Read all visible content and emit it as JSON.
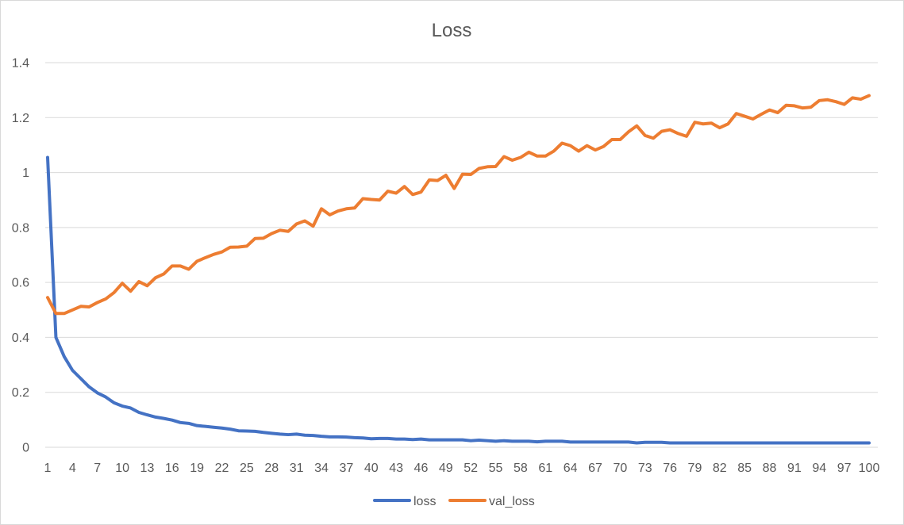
{
  "chart_data": {
    "type": "line",
    "title": "Loss",
    "xlabel": "",
    "ylabel": "",
    "ylim": [
      0,
      1.4
    ],
    "yticks": [
      "0",
      "0.2",
      "0.4",
      "0.6",
      "0.8",
      "1",
      "1.2",
      "1.4"
    ],
    "x": [
      1,
      2,
      3,
      4,
      5,
      6,
      7,
      8,
      9,
      10,
      11,
      12,
      13,
      14,
      15,
      16,
      17,
      18,
      19,
      20,
      21,
      22,
      23,
      24,
      25,
      26,
      27,
      28,
      29,
      30,
      31,
      32,
      33,
      34,
      35,
      36,
      37,
      38,
      39,
      40,
      41,
      42,
      43,
      44,
      45,
      46,
      47,
      48,
      49,
      50,
      51,
      52,
      53,
      54,
      55,
      56,
      57,
      58,
      59,
      60,
      61,
      62,
      63,
      64,
      65,
      66,
      67,
      68,
      69,
      70,
      71,
      72,
      73,
      74,
      75,
      76,
      77,
      78,
      79,
      80,
      81,
      82,
      83,
      84,
      85,
      86,
      87,
      88,
      89,
      90,
      91,
      92,
      93,
      94,
      95,
      96,
      97,
      98,
      99,
      100
    ],
    "xticks": [
      "1",
      "4",
      "7",
      "10",
      "13",
      "16",
      "19",
      "22",
      "25",
      "28",
      "31",
      "34",
      "37",
      "40",
      "43",
      "46",
      "49",
      "52",
      "55",
      "58",
      "61",
      "64",
      "67",
      "70",
      "73",
      "76",
      "79",
      "82",
      "85",
      "88",
      "91",
      "94",
      "97",
      "100"
    ],
    "grid": true,
    "legend_position": "bottom",
    "series": [
      {
        "name": "loss",
        "color": "#4472C4",
        "values": [
          1.055,
          0.4,
          0.33,
          0.28,
          0.25,
          0.22,
          0.198,
          0.183,
          0.162,
          0.15,
          0.143,
          0.127,
          0.118,
          0.11,
          0.105,
          0.099,
          0.09,
          0.087,
          0.079,
          0.076,
          0.073,
          0.07,
          0.066,
          0.06,
          0.059,
          0.058,
          0.054,
          0.051,
          0.048,
          0.046,
          0.048,
          0.044,
          0.043,
          0.04,
          0.038,
          0.038,
          0.037,
          0.035,
          0.034,
          0.031,
          0.032,
          0.032,
          0.03,
          0.03,
          0.028,
          0.03,
          0.027,
          0.027,
          0.027,
          0.027,
          0.027,
          0.024,
          0.026,
          0.024,
          0.022,
          0.024,
          0.022,
          0.022,
          0.022,
          0.02,
          0.022,
          0.022,
          0.022,
          0.019,
          0.019,
          0.019,
          0.019,
          0.019,
          0.019,
          0.019,
          0.019,
          0.016,
          0.018,
          0.018,
          0.018,
          0.016,
          0.016,
          0.016,
          0.016,
          0.016,
          0.016,
          0.016,
          0.016,
          0.016,
          0.016,
          0.016,
          0.016,
          0.016,
          0.016,
          0.016,
          0.016,
          0.016,
          0.016,
          0.016,
          0.016,
          0.016,
          0.016,
          0.016,
          0.016,
          0.016
        ]
      },
      {
        "name": "val_loss",
        "color": "#ED7D31",
        "values": [
          0.545,
          0.487,
          0.487,
          0.5,
          0.513,
          0.511,
          0.527,
          0.54,
          0.563,
          0.597,
          0.568,
          0.603,
          0.588,
          0.617,
          0.631,
          0.66,
          0.66,
          0.648,
          0.677,
          0.69,
          0.702,
          0.711,
          0.728,
          0.729,
          0.732,
          0.76,
          0.761,
          0.778,
          0.79,
          0.786,
          0.813,
          0.824,
          0.805,
          0.868,
          0.846,
          0.86,
          0.868,
          0.871,
          0.905,
          0.902,
          0.9,
          0.932,
          0.925,
          0.949,
          0.92,
          0.929,
          0.973,
          0.971,
          0.99,
          0.942,
          0.994,
          0.993,
          1.015,
          1.021,
          1.022,
          1.058,
          1.045,
          1.055,
          1.074,
          1.06,
          1.06,
          1.078,
          1.107,
          1.098,
          1.078,
          1.098,
          1.082,
          1.095,
          1.12,
          1.12,
          1.148,
          1.17,
          1.135,
          1.125,
          1.15,
          1.156,
          1.142,
          1.132,
          1.183,
          1.177,
          1.18,
          1.163,
          1.177,
          1.215,
          1.205,
          1.195,
          1.212,
          1.228,
          1.218,
          1.245,
          1.243,
          1.235,
          1.238,
          1.262,
          1.265,
          1.258,
          1.248,
          1.272,
          1.267,
          1.28
        ]
      }
    ]
  }
}
